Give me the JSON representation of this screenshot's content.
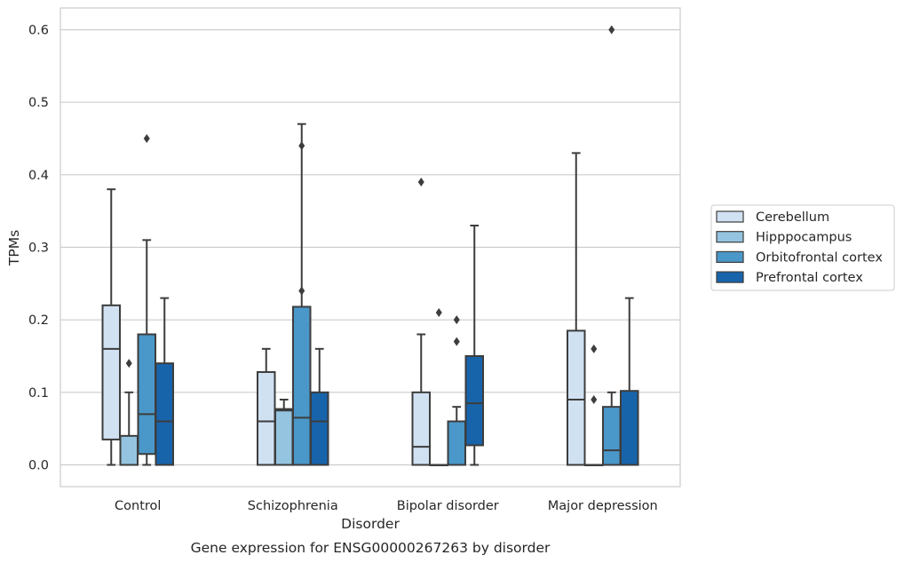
{
  "chart_data": {
    "type": "box",
    "caption": "Gene expression for ENSG00000267263 by disorder",
    "xlabel": "Disorder",
    "ylabel": "TPMs",
    "ylim": [
      -0.03,
      0.63
    ],
    "yticks": [
      0.0,
      0.1,
      0.2,
      0.3,
      0.4,
      0.5,
      0.6
    ],
    "ytick_labels": [
      "0.0",
      "0.1",
      "0.2",
      "0.3",
      "0.4",
      "0.5",
      "0.6"
    ],
    "grid": "horizontal",
    "legend_position": "right",
    "categories": [
      "Control",
      "Schizophrenia",
      "Bipolar disorder",
      "Major depression"
    ],
    "series": [
      {
        "name": "Cerebellum",
        "color": "#d0e1f2",
        "boxes": [
          {
            "whislo": 0.0,
            "q1": 0.035,
            "med": 0.16,
            "q3": 0.22,
            "whishi": 0.38,
            "fliers": []
          },
          {
            "whislo": 0.0,
            "q1": 0.0,
            "med": 0.06,
            "q3": 0.128,
            "whishi": 0.16,
            "fliers": []
          },
          {
            "whislo": 0.0,
            "q1": 0.0,
            "med": 0.025,
            "q3": 0.1,
            "whishi": 0.18,
            "fliers": [
              0.39
            ]
          },
          {
            "whislo": 0.0,
            "q1": 0.0,
            "med": 0.09,
            "q3": 0.185,
            "whishi": 0.43,
            "fliers": []
          }
        ]
      },
      {
        "name": "Hipppocampus",
        "color": "#94c4df",
        "boxes": [
          {
            "whislo": 0.0,
            "q1": 0.0,
            "med": 0.0,
            "q3": 0.04,
            "whishi": 0.1,
            "fliers": [
              0.14
            ]
          },
          {
            "whislo": 0.0,
            "q1": 0.0,
            "med": 0.075,
            "q3": 0.077,
            "whishi": 0.09,
            "fliers": []
          },
          {
            "whislo": 0.0,
            "q1": 0.0,
            "med": 0.0,
            "q3": 0.0,
            "whishi": 0.0,
            "fliers": [
              0.21
            ]
          },
          {
            "whislo": 0.0,
            "q1": 0.0,
            "med": 0.0,
            "q3": 0.0,
            "whishi": 0.0,
            "fliers": [
              0.09,
              0.16
            ]
          }
        ]
      },
      {
        "name": "Orbitofrontal cortex",
        "color": "#4a98c9",
        "boxes": [
          {
            "whislo": 0.0,
            "q1": 0.015,
            "med": 0.07,
            "q3": 0.18,
            "whishi": 0.31,
            "fliers": [
              0.45
            ]
          },
          {
            "whislo": 0.0,
            "q1": 0.0,
            "med": 0.065,
            "q3": 0.218,
            "whishi": 0.47,
            "fliers": [
              0.24,
              0.44
            ]
          },
          {
            "whislo": 0.0,
            "q1": 0.0,
            "med": 0.06,
            "q3": 0.06,
            "whishi": 0.08,
            "fliers": [
              0.17,
              0.2
            ]
          },
          {
            "whislo": 0.0,
            "q1": 0.0,
            "med": 0.02,
            "q3": 0.08,
            "whishi": 0.1,
            "fliers": [
              0.6
            ]
          }
        ]
      },
      {
        "name": "Prefrontal cortex",
        "color": "#1764ab",
        "boxes": [
          {
            "whislo": 0.0,
            "q1": 0.0,
            "med": 0.06,
            "q3": 0.14,
            "whishi": 0.23,
            "fliers": []
          },
          {
            "whislo": 0.0,
            "q1": 0.0,
            "med": 0.06,
            "q3": 0.1,
            "whishi": 0.16,
            "fliers": []
          },
          {
            "whislo": 0.0,
            "q1": 0.027,
            "med": 0.085,
            "q3": 0.15,
            "whishi": 0.33,
            "fliers": []
          },
          {
            "whislo": 0.0,
            "q1": 0.0,
            "med": 0.0,
            "q3": 0.102,
            "whishi": 0.23,
            "fliers": []
          }
        ]
      }
    ]
  }
}
